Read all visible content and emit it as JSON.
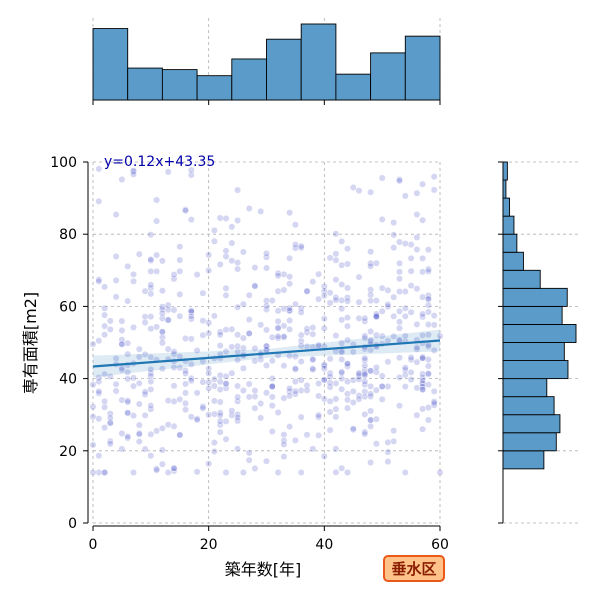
{
  "chart_data": {
    "type": "scatter",
    "xlabel": "築年数[年]",
    "ylabel": "専有面積[m2]",
    "xlim": [
      0,
      60
    ],
    "ylim": [
      0,
      100
    ],
    "x_ticks": [
      0,
      20,
      40,
      60
    ],
    "y_ticks": [
      0,
      20,
      40,
      60,
      80,
      100
    ],
    "grid": true,
    "regression": {
      "slope": 0.12,
      "intercept": 43.35,
      "label": "y=0.12x+43.35"
    },
    "badge": "垂水区",
    "colors": {
      "points": "#3b44c4",
      "regression": "#1f77b4",
      "hist": "#5b9bc9",
      "badge_fill": "#ffc38a",
      "badge_border": "#e8591a"
    },
    "x_histogram": {
      "bin_edges": [
        0,
        6,
        12,
        18,
        24,
        30,
        36,
        42,
        48,
        54,
        60
      ],
      "relative_heights": [
        0.94,
        0.42,
        0.4,
        0.32,
        0.54,
        0.8,
        1.0,
        0.34,
        0.62,
        0.84
      ]
    },
    "y_histogram": {
      "bin_edges": [
        15,
        20,
        25,
        30,
        35,
        40,
        45,
        50,
        55,
        60,
        65,
        70,
        75,
        80,
        85,
        90,
        95,
        100
      ],
      "relative_heights": [
        0.56,
        0.73,
        0.78,
        0.7,
        0.6,
        0.89,
        0.84,
        1.0,
        0.81,
        0.88,
        0.51,
        0.28,
        0.19,
        0.15,
        0.09,
        0.04,
        0.06
      ]
    },
    "points_summary": "approximately 700 semi-transparent points spread over x 0–60, y 15–100, densest at y 20–65"
  }
}
